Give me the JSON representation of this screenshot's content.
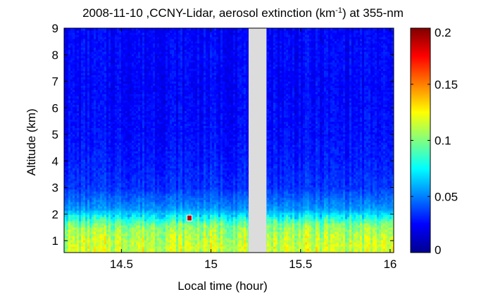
{
  "chart_data": {
    "type": "heatmap",
    "title": {
      "prefix": "2008-11-10 ,CCNY-Lidar, aerosol extinction (km",
      "sup": "-1",
      "suffix": ") at 355-nm"
    },
    "xlabel": "Local time (hour)",
    "ylabel": "Altitude (km)",
    "xlim": [
      14.18,
      16.02
    ],
    "ylim": [
      0.55,
      9
    ],
    "xticks": [
      14.5,
      15,
      15.5,
      16
    ],
    "xtick_labels": [
      "14.5",
      "15",
      "15.5",
      "16"
    ],
    "yticks": [
      1,
      2,
      3,
      4,
      5,
      6,
      7,
      8,
      9
    ],
    "ytick_labels": [
      "1",
      "2",
      "3",
      "4",
      "5",
      "6",
      "7",
      "8",
      "9"
    ],
    "data_gap_x": [
      15.21,
      15.31
    ],
    "grid": false,
    "colorbar": {
      "min": 0,
      "max": 0.2,
      "ticks": [
        0,
        0.05,
        0.1,
        0.15,
        0.2
      ],
      "tick_labels": [
        "0",
        "0.05",
        "0.1",
        "0.15",
        "0.2"
      ],
      "colormap": "jet"
    },
    "altitude_profile": [
      {
        "altitude": 0.8,
        "extinction": 0.115
      },
      {
        "altitude": 1.2,
        "extinction": 0.11
      },
      {
        "altitude": 1.6,
        "extinction": 0.1
      },
      {
        "altitude": 1.9,
        "extinction": 0.075
      },
      {
        "altitude": 2.2,
        "extinction": 0.055
      },
      {
        "altitude": 2.6,
        "extinction": 0.045
      },
      {
        "altitude": 3.0,
        "extinction": 0.035
      },
      {
        "altitude": 4.0,
        "extinction": 0.03
      },
      {
        "altitude": 5.0,
        "extinction": 0.027
      },
      {
        "altitude": 6.0,
        "extinction": 0.026
      },
      {
        "altitude": 7.0,
        "extinction": 0.025
      },
      {
        "altitude": 8.0,
        "extinction": 0.026
      },
      {
        "altitude": 9.0,
        "extinction": 0.025
      }
    ],
    "peak_feature": {
      "time": 14.88,
      "altitude": 1.85,
      "extinction": 0.19
    }
  }
}
